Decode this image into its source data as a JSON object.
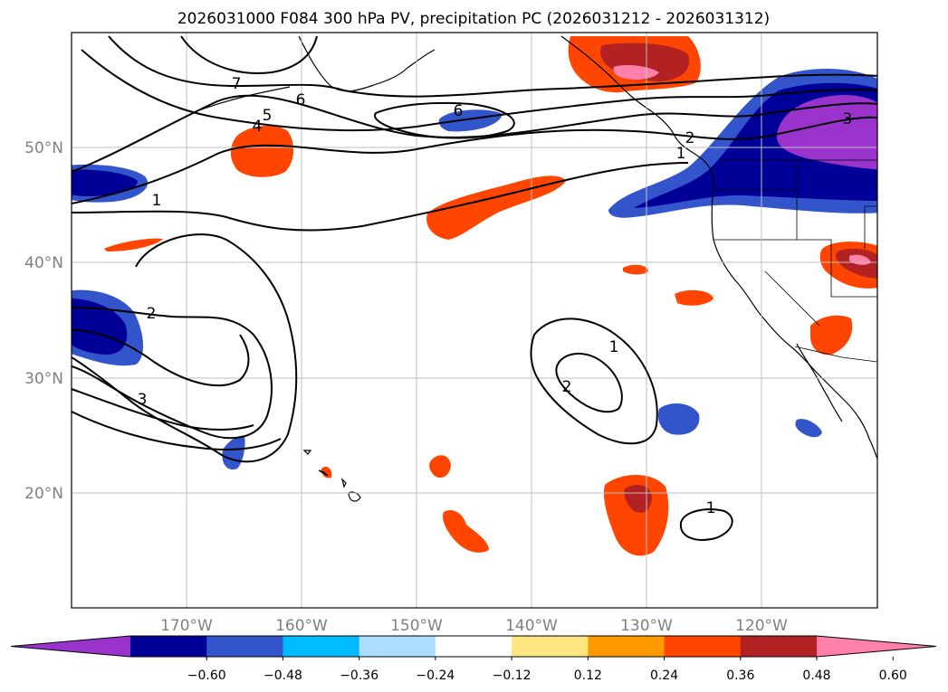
{
  "map": {
    "title": "2026031000 F084 300 hPa PV, precipitation PC (2026031212 - 2026031312)",
    "lon_labels": [
      "170°W",
      "160°W",
      "150°W",
      "140°W",
      "130°W",
      "120°W"
    ],
    "lat_labels": [
      "50°N",
      "40°N",
      "30°N",
      "20°N"
    ],
    "contour_labels": [
      {
        "key": "pv7",
        "text": "7"
      },
      {
        "key": "pv6a",
        "text": "6"
      },
      {
        "key": "pv5",
        "text": "5"
      },
      {
        "key": "pv4",
        "text": "4"
      },
      {
        "key": "pv6b",
        "text": "6"
      },
      {
        "key": "pv2a",
        "text": "2"
      },
      {
        "key": "pv1a",
        "text": "1"
      },
      {
        "key": "pv3a",
        "text": "3"
      },
      {
        "key": "pv1b",
        "text": "1"
      },
      {
        "key": "pv2b",
        "text": "2"
      },
      {
        "key": "pv3b",
        "text": "3"
      },
      {
        "key": "pv1c",
        "text": "1"
      },
      {
        "key": "pv2c",
        "text": "2"
      },
      {
        "key": "pv1d",
        "text": "1"
      }
    ]
  },
  "colorbar": {
    "ticks": [
      "−0.60",
      "−0.48",
      "−0.36",
      "−0.24",
      "−0.12",
      "0.12",
      "0.24",
      "0.36",
      "0.48",
      "0.60"
    ],
    "colors": [
      "#9933cc",
      "#000099",
      "#3355cc",
      "#00bbff",
      "#aaddff",
      "#ffffff",
      "#ffe680",
      "#ff9900",
      "#ff4500",
      "#b22222",
      "#ff80a8"
    ]
  }
}
